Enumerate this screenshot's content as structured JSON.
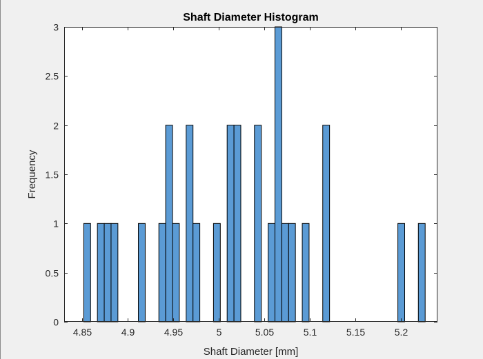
{
  "chart_data": {
    "type": "bar",
    "title": "Shaft Diameter Histogram",
    "xlabel": "Shaft Diameter [mm]",
    "ylabel": "Frequency",
    "xlim": [
      4.83,
      5.24
    ],
    "ylim": [
      0,
      3
    ],
    "bin_width": 0.0075,
    "xticks": [
      {
        "value": 4.85,
        "label": "4.85"
      },
      {
        "value": 4.9,
        "label": "4.9"
      },
      {
        "value": 4.95,
        "label": "4.95"
      },
      {
        "value": 5.0,
        "label": "5"
      },
      {
        "value": 5.05,
        "label": "5.05"
      },
      {
        "value": 5.1,
        "label": "5.1"
      },
      {
        "value": 5.15,
        "label": "5.15"
      },
      {
        "value": 5.2,
        "label": "5.2"
      }
    ],
    "yticks": [
      {
        "value": 0,
        "label": "0"
      },
      {
        "value": 0.5,
        "label": "0.5"
      },
      {
        "value": 1,
        "label": "1"
      },
      {
        "value": 1.5,
        "label": "1.5"
      },
      {
        "value": 2,
        "label": "2"
      },
      {
        "value": 2.5,
        "label": "2.5"
      },
      {
        "value": 3,
        "label": "3"
      }
    ],
    "bins": [
      {
        "start": 4.8515,
        "count": 1
      },
      {
        "start": 4.8665,
        "count": 1
      },
      {
        "start": 4.874,
        "count": 1
      },
      {
        "start": 4.8815,
        "count": 1
      },
      {
        "start": 4.9115,
        "count": 1
      },
      {
        "start": 4.934,
        "count": 1
      },
      {
        "start": 4.9415,
        "count": 2
      },
      {
        "start": 4.949,
        "count": 1
      },
      {
        "start": 4.964,
        "count": 2
      },
      {
        "start": 4.9715,
        "count": 1
      },
      {
        "start": 4.994,
        "count": 1
      },
      {
        "start": 5.009,
        "count": 2
      },
      {
        "start": 5.0165,
        "count": 2
      },
      {
        "start": 5.039,
        "count": 2
      },
      {
        "start": 5.054,
        "count": 1
      },
      {
        "start": 5.0615,
        "count": 3
      },
      {
        "start": 5.069,
        "count": 1
      },
      {
        "start": 5.0765,
        "count": 1
      },
      {
        "start": 5.0915,
        "count": 1
      },
      {
        "start": 5.114,
        "count": 2
      },
      {
        "start": 5.1965,
        "count": 1
      },
      {
        "start": 5.219,
        "count": 1
      }
    ],
    "grid": false,
    "bar_color": "#5b9bd5",
    "edge_color": "#000000"
  }
}
